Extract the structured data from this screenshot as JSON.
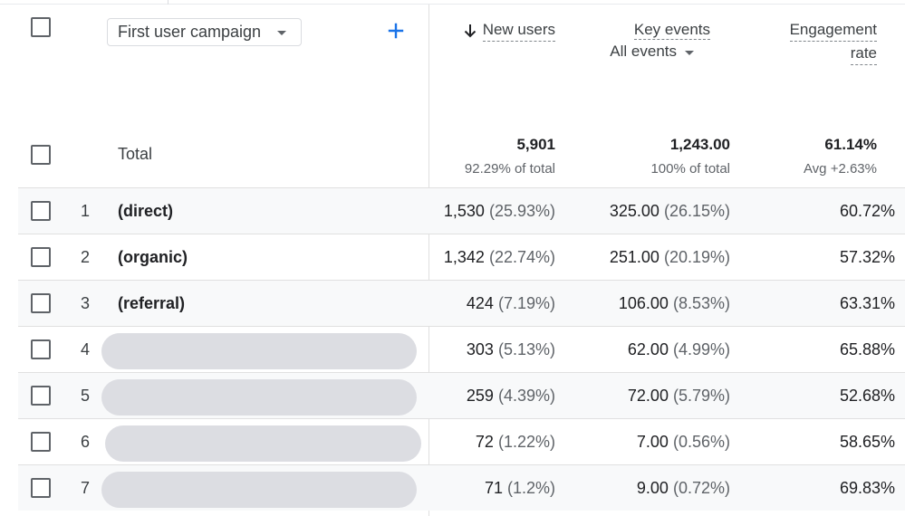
{
  "dimension": {
    "label": "First user campaign"
  },
  "headers": {
    "new_users": "New users",
    "key_events": "Key events",
    "key_events_filter": "All events",
    "engagement_rate_line1": "Engagement",
    "engagement_rate_line2": "rate"
  },
  "totals": {
    "label": "Total",
    "new_users": "5,901",
    "new_users_sub": "92.29% of total",
    "key_events": "1,243.00",
    "key_events_sub": "100% of total",
    "engagement_rate": "61.14%",
    "engagement_rate_sub": "Avg +2.63%"
  },
  "rows": [
    {
      "index": "1",
      "name": "(direct)",
      "redacted": false,
      "new_users": "1,530",
      "new_users_pct": "(25.93%)",
      "key_events": "325.00",
      "key_events_pct": "(26.15%)",
      "engagement_rate": "60.72%"
    },
    {
      "index": "2",
      "name": "(organic)",
      "redacted": false,
      "new_users": "1,342",
      "new_users_pct": "(22.74%)",
      "key_events": "251.00",
      "key_events_pct": "(20.19%)",
      "engagement_rate": "57.32%"
    },
    {
      "index": "3",
      "name": "(referral)",
      "redacted": false,
      "new_users": "424",
      "new_users_pct": "(7.19%)",
      "key_events": "106.00",
      "key_events_pct": "(8.53%)",
      "engagement_rate": "63.31%"
    },
    {
      "index": "4",
      "name": "",
      "redacted": true,
      "new_users": "303",
      "new_users_pct": "(5.13%)",
      "key_events": "62.00",
      "key_events_pct": "(4.99%)",
      "engagement_rate": "65.88%"
    },
    {
      "index": "5",
      "name": "",
      "redacted": true,
      "new_users": "259",
      "new_users_pct": "(4.39%)",
      "key_events": "72.00",
      "key_events_pct": "(5.79%)",
      "engagement_rate": "52.68%"
    },
    {
      "index": "6",
      "name": "",
      "redacted": true,
      "new_users": "72",
      "new_users_pct": "(1.22%)",
      "key_events": "7.00",
      "key_events_pct": "(0.56%)",
      "engagement_rate": "58.65%"
    },
    {
      "index": "7",
      "name": "",
      "redacted": true,
      "new_users": "71",
      "new_users_pct": "(1.2%)",
      "key_events": "9.00",
      "key_events_pct": "(0.72%)",
      "engagement_rate": "69.83%"
    }
  ],
  "icons": {
    "add": "plus-icon",
    "sort": "arrow-down-icon",
    "dropdown": "caret-down-icon"
  },
  "colors": {
    "accent": "#1a73e8",
    "redaction": "#dcdde2",
    "row_alt": "#f8f9fa"
  }
}
